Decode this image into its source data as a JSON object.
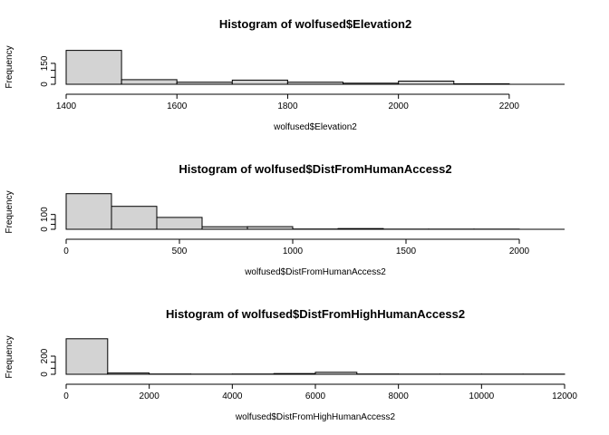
{
  "chart_data": [
    {
      "type": "bar",
      "title": "Histogram of wolfused$Elevation2",
      "xlabel": "wolfused$Elevation2",
      "ylabel": "Frequency",
      "xticks": [
        1400,
        1600,
        1800,
        2000,
        2200
      ],
      "yticks": [
        0,
        150
      ],
      "bin_edges": [
        1400,
        1500,
        1600,
        1700,
        1800,
        1900,
        2000,
        2100,
        2200
      ],
      "values": [
        243,
        33,
        15,
        30,
        15,
        8,
        23,
        3
      ],
      "xlim": [
        1400,
        2300
      ],
      "ylim": [
        0,
        260
      ]
    },
    {
      "type": "bar",
      "title": "Histogram of wolfused$DistFromHumanAccess2",
      "xlabel": "wolfused$DistFromHumanAccess2",
      "ylabel": "Frequency",
      "xticks": [
        0,
        500,
        1000,
        1500,
        2000
      ],
      "yticks": [
        0,
        100
      ],
      "bin_edges": [
        0,
        200,
        400,
        600,
        800,
        1000,
        1200,
        1400,
        1600,
        1800,
        2000
      ],
      "values": [
        241,
        155,
        80,
        17,
        18,
        2,
        5,
        1,
        1,
        1
      ],
      "xlim": [
        0,
        2200
      ],
      "ylim": [
        0,
        245
      ]
    },
    {
      "type": "bar",
      "title": "Histogram of wolfused$DistFromHighHumanAccess2",
      "xlabel": "wolfused$DistFromHighHumanAccess2",
      "ylabel": "Frequency",
      "xticks": [
        0,
        2000,
        4000,
        6000,
        8000,
        10000,
        12000
      ],
      "yticks": [
        0,
        200
      ],
      "bin_edges": [
        0,
        1000,
        2000,
        3000,
        4000,
        5000,
        6000,
        7000,
        8000,
        9000,
        10000,
        11000,
        12000
      ],
      "values": [
        392,
        14,
        3,
        2,
        3,
        8,
        22,
        3,
        2,
        2,
        2,
        2
      ],
      "xlim": [
        0,
        12000
      ],
      "ylim": [
        0,
        400
      ]
    }
  ]
}
